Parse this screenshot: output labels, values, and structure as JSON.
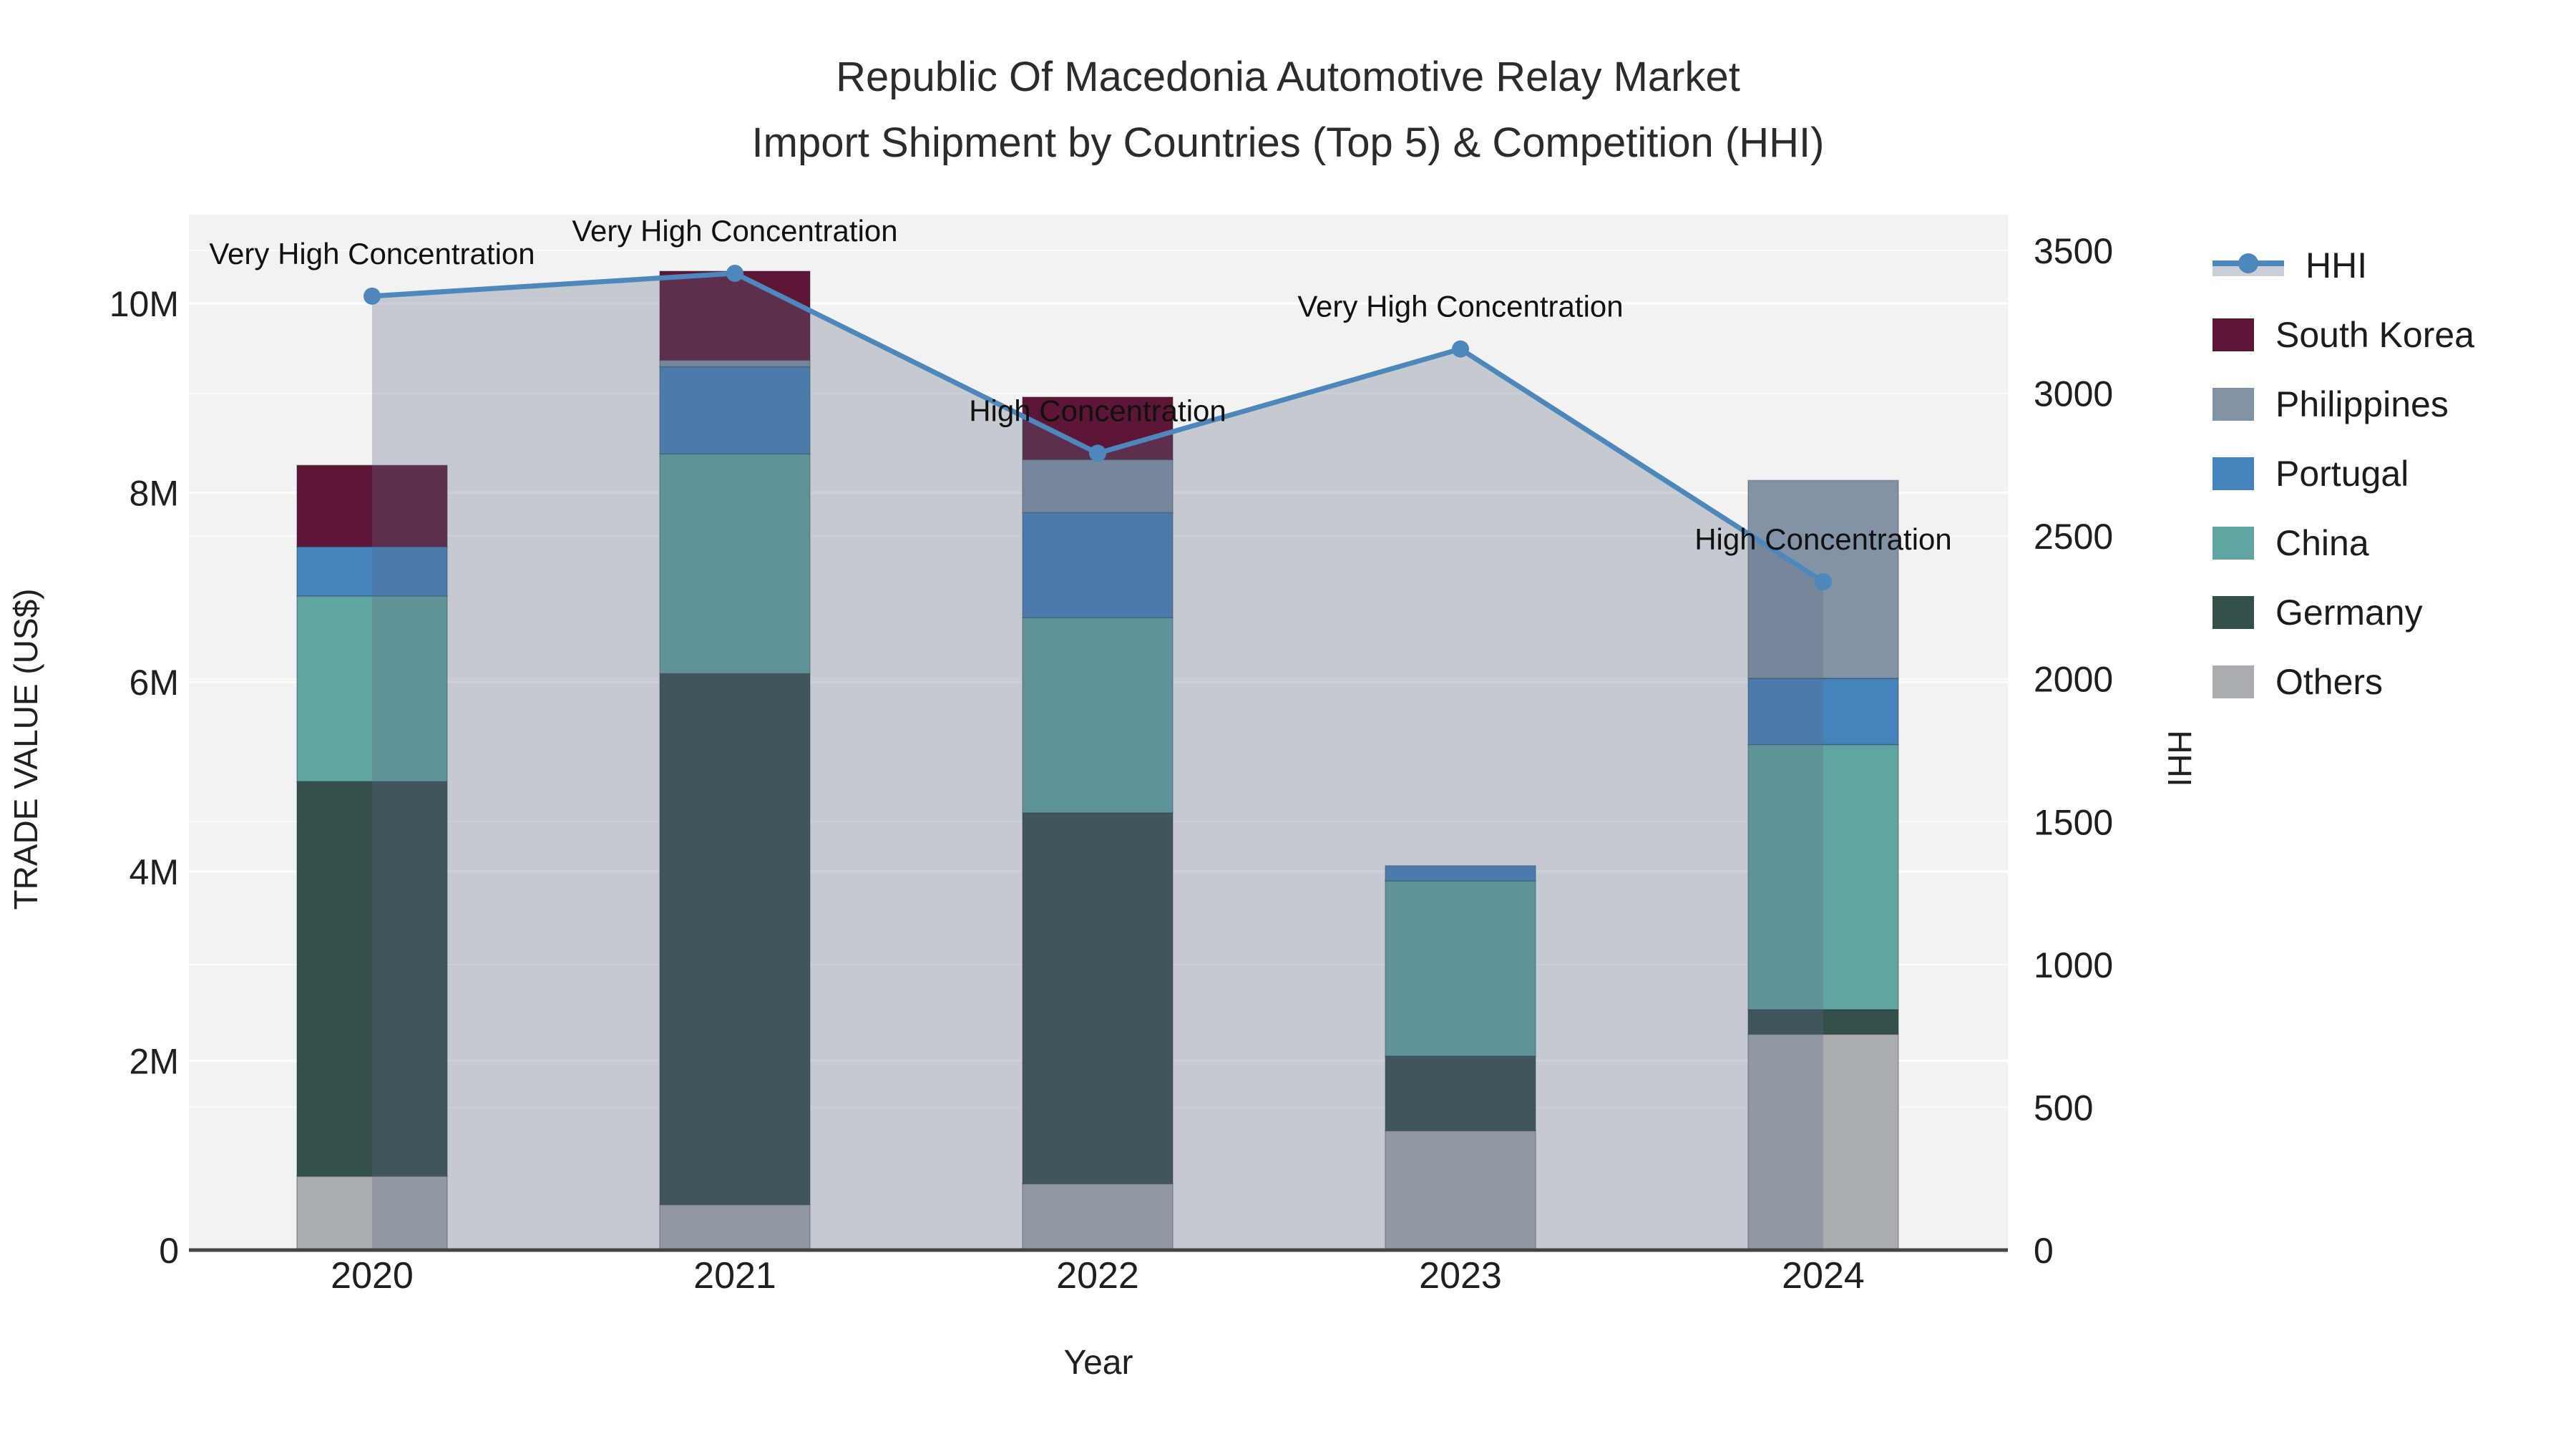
{
  "title": {
    "line1": "Republic Of Macedonia Automotive Relay Market",
    "line2": "Import Shipment by Countries (Top 5) & Competition (HHI)"
  },
  "legend": {
    "order": [
      "HHI",
      "South Korea",
      "Philippines",
      "Portugal",
      "China",
      "Germany",
      "Others"
    ]
  },
  "chart_data": {
    "type": "bar+line",
    "title": "Republic Of Macedonia Automotive Relay Market Import Shipment by Countries (Top 5) & Competition (HHI)",
    "categories": [
      "2020",
      "2021",
      "2022",
      "2023",
      "2024"
    ],
    "bar_unit": "million US$",
    "series": [
      {
        "name": "Others",
        "color": "#aaadaf",
        "values": [
          0.78,
          0.48,
          0.7,
          1.26,
          2.28
        ]
      },
      {
        "name": "Germany",
        "color": "#33504a",
        "values": [
          4.17,
          5.61,
          3.92,
          0.79,
          0.26
        ]
      },
      {
        "name": "China",
        "color": "#60a5a2",
        "values": [
          1.96,
          2.32,
          2.06,
          1.85,
          2.8
        ]
      },
      {
        "name": "Portugal",
        "color": "#4483bc",
        "values": [
          0.52,
          0.92,
          1.11,
          0.16,
          0.7
        ]
      },
      {
        "name": "Philippines",
        "color": "#8293a6",
        "values": [
          0.0,
          0.07,
          0.56,
          0.0,
          2.09
        ]
      },
      {
        "name": "South Korea",
        "color": "#5e1637",
        "values": [
          0.86,
          0.94,
          0.66,
          0.0,
          0.0
        ]
      }
    ],
    "line_series": {
      "name": "HHI",
      "color": "#4d87bc",
      "fill_color": "rgba(92,106,128,0.30)",
      "values": [
        3340,
        3420,
        2790,
        3155,
        2340
      ]
    },
    "annotations": [
      "Very High Concentration",
      "Very High Concentration",
      "High Concentration",
      "Very High Concentration",
      "High Concentration"
    ],
    "x_axis": {
      "title": "Year"
    },
    "y_axis_left": {
      "title": "TRADE VALUE (US$)",
      "ticks": [
        "0",
        "2M",
        "4M",
        "6M",
        "8M",
        "10M"
      ],
      "tick_values": [
        0,
        2,
        4,
        6,
        8,
        10
      ],
      "range": [
        0,
        10.94
      ]
    },
    "y_axis_right": {
      "title": "HHI",
      "ticks": [
        "0",
        "500",
        "1000",
        "1500",
        "2000",
        "2500",
        "3000",
        "3500"
      ],
      "tick_values": [
        0,
        500,
        1000,
        1500,
        2000,
        2500,
        3000,
        3500
      ],
      "range": [
        0,
        3625
      ]
    },
    "grid": {
      "on": true,
      "plot_bg": "#f2f2f2",
      "grid_color": "#ffffff"
    },
    "legend_position": "right"
  }
}
